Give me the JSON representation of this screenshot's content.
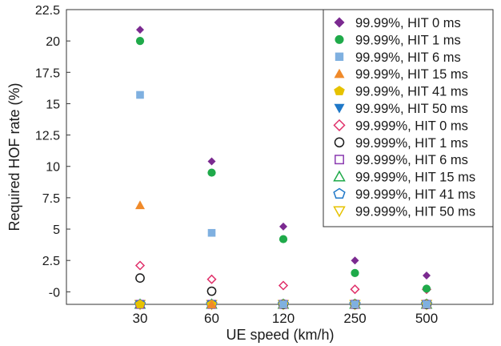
{
  "chart_data": {
    "type": "scatter",
    "xlabel": "UE speed (km/h)",
    "ylabel": "Required HOF rate (%)",
    "categories": [
      "30",
      "60",
      "120",
      "250",
      "500"
    ],
    "ylim": [
      -1,
      22.5
    ],
    "yticks": [
      "-0",
      "2.5",
      "5",
      "7.5",
      "10",
      "12.5",
      "15",
      "17.5",
      "20",
      "22.5"
    ],
    "ytick_values": [
      0,
      2.5,
      5,
      7.5,
      10,
      12.5,
      15,
      17.5,
      20,
      22.5
    ],
    "grid": false,
    "legend_position": "top-right",
    "series": [
      {
        "name": "99.99%, HIT 0 ms",
        "marker": "diamond",
        "fill": true,
        "color": "#7b2a90",
        "values": [
          20.9,
          10.4,
          5.2,
          2.5,
          1.3
        ]
      },
      {
        "name": "99.99%, HIT 1 ms",
        "marker": "circle",
        "fill": true,
        "color": "#1faa4a",
        "values": [
          20.0,
          9.5,
          4.2,
          1.5,
          0.25
        ]
      },
      {
        "name": "99.99%, HIT 6 ms",
        "marker": "square",
        "fill": true,
        "color": "#7fb0e0",
        "values": [
          15.7,
          4.7,
          -1,
          -1,
          -1
        ]
      },
      {
        "name": "99.99%, HIT 15 ms",
        "marker": "triangle-up",
        "fill": true,
        "color": "#f08a2a",
        "values": [
          6.9,
          -1,
          -1,
          -1,
          -1
        ]
      },
      {
        "name": "99.99%, HIT 41 ms",
        "marker": "pentagon",
        "fill": true,
        "color": "#e6c200",
        "values": [
          -1,
          -1,
          -1,
          -1,
          -1
        ]
      },
      {
        "name": "99.99%, HIT 50 ms",
        "marker": "triangle-down",
        "fill": true,
        "color": "#1f78c8",
        "values": [
          -1,
          -1,
          -1,
          -1,
          -1
        ]
      },
      {
        "name": "99.999%, HIT 0 ms",
        "marker": "diamond",
        "fill": false,
        "color": "#e0306a",
        "values": [
          2.1,
          1.0,
          0.5,
          0.2,
          0.2
        ]
      },
      {
        "name": "99.999%, HIT 1 ms",
        "marker": "circle",
        "fill": false,
        "color": "#1a1a1a",
        "values": [
          1.1,
          0.05,
          -1,
          -1,
          -1
        ]
      },
      {
        "name": "99.999%, HIT 6 ms",
        "marker": "square",
        "fill": false,
        "color": "#8a3ab0",
        "values": [
          -1,
          -1,
          -1,
          -1,
          -1
        ]
      },
      {
        "name": "99.999%, HIT 15 ms",
        "marker": "triangle-up",
        "fill": false,
        "color": "#1faa4a",
        "values": [
          -1,
          -1,
          -1,
          -1,
          -1
        ]
      },
      {
        "name": "99.999%, HIT 41 ms",
        "marker": "pentagon",
        "fill": false,
        "color": "#1f78c8",
        "values": [
          -1,
          -1,
          -1,
          -1,
          -1
        ]
      },
      {
        "name": "99.999%, HIT 50 ms",
        "marker": "triangle-down",
        "fill": false,
        "color": "#e6c200",
        "values": [
          -1,
          -1,
          -1,
          -1,
          -1
        ]
      }
    ]
  }
}
